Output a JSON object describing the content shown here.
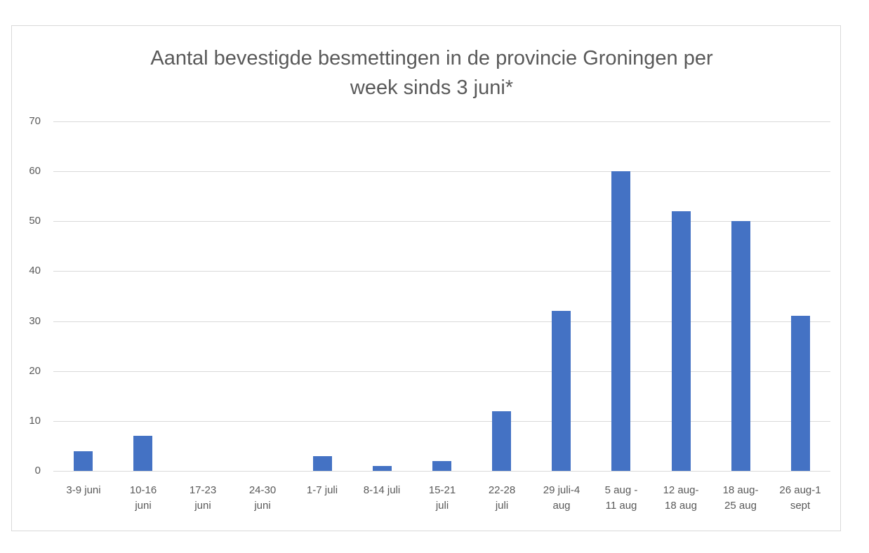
{
  "chart_data": {
    "type": "bar",
    "title": "Aantal bevestigde besmettingen in de provincie Groningen per week sinds 3 juni*",
    "title_lines": [
      "Aantal bevestigde besmettingen in de provincie Groningen per",
      "week sinds 3 juni*"
    ],
    "xlabel": "",
    "ylabel": "",
    "ylim": [
      0,
      70
    ],
    "yticks": [
      0,
      10,
      20,
      30,
      40,
      50,
      60,
      70
    ],
    "grid": true,
    "legend": null,
    "bar_color": "#4472c4",
    "categories": [
      "3-9 juni",
      "10-16 juni",
      "17-23 juni",
      "24-30 juni",
      "1-7 juli",
      "8-14 juli",
      "15-21 juli",
      "22-28 juli",
      "29 juli-4 aug",
      "5 aug - 11 aug",
      "12 aug- 18 aug",
      "18 aug- 25 aug",
      "26 aug-1 sept"
    ],
    "category_label_lines": [
      [
        "3-9 juni"
      ],
      [
        "10-16",
        "juni"
      ],
      [
        "17-23",
        "juni"
      ],
      [
        "24-30",
        "juni"
      ],
      [
        "1-7 juli"
      ],
      [
        "8-14 juli"
      ],
      [
        "15-21",
        "juli"
      ],
      [
        "22-28",
        "juli"
      ],
      [
        "29 juli-4",
        "aug"
      ],
      [
        "5 aug -",
        "11 aug"
      ],
      [
        "12 aug-",
        "18 aug"
      ],
      [
        "18 aug-",
        "25 aug"
      ],
      [
        "26 aug-1",
        "sept"
      ]
    ],
    "values": [
      4,
      7,
      0,
      0,
      3,
      1,
      2,
      12,
      32,
      60,
      52,
      50,
      31
    ]
  }
}
